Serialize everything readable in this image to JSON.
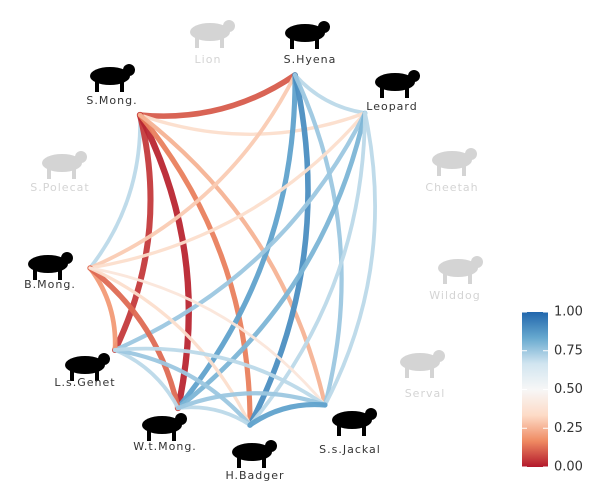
{
  "chart_data": {
    "type": "network",
    "nodes": [
      {
        "label": "Lion",
        "color": "#d4d4d4"
      },
      {
        "label": "S.Hyena",
        "color": "#000000"
      },
      {
        "label": "Leopard",
        "color": "#000000"
      },
      {
        "label": "Cheetah",
        "color": "#d4d4d4"
      },
      {
        "label": "Wilddog",
        "color": "#d4d4d4"
      },
      {
        "label": "Serval",
        "color": "#d4d4d4"
      },
      {
        "label": "S.s.Jackal",
        "color": "#000000"
      },
      {
        "label": "H.Badger",
        "color": "#000000"
      },
      {
        "label": "W.t.Mong.",
        "color": "#000000"
      },
      {
        "label": "L.s.Genet",
        "color": "#000000"
      },
      {
        "label": "B.Mong.",
        "color": "#000000"
      },
      {
        "label": "S.Polecat",
        "color": "#d4d4d4"
      },
      {
        "label": "S.Mong.",
        "color": "#000000"
      }
    ],
    "edges": [
      {
        "source": "S.Mong.",
        "target": "S.Hyena",
        "value": 0.1
      },
      {
        "source": "S.Hyena",
        "target": "Leopard",
        "value": 0.7
      },
      {
        "source": "S.Mong.",
        "target": "Leopard",
        "value": 0.35
      },
      {
        "source": "B.Mong.",
        "target": "S.Mong.",
        "value": 0.7
      },
      {
        "source": "L.s.Genet",
        "target": "S.Mong.",
        "value": 0.05
      },
      {
        "source": "W.t.Mong.",
        "target": "S.Mong.",
        "value": 0.02
      },
      {
        "source": "H.Badger",
        "target": "S.Mong.",
        "value": 0.15
      },
      {
        "source": "S.s.Jackal",
        "target": "S.Mong.",
        "value": 0.25
      },
      {
        "source": "B.Mong.",
        "target": "S.Hyena",
        "value": 0.3
      },
      {
        "source": "W.t.Mong.",
        "target": "S.Hyena",
        "value": 0.85
      },
      {
        "source": "H.Badger",
        "target": "S.Hyena",
        "value": 0.9
      },
      {
        "source": "S.s.Jackal",
        "target": "S.Hyena",
        "value": 0.75
      },
      {
        "source": "B.Mong.",
        "target": "Leopard",
        "value": 0.35
      },
      {
        "source": "L.s.Genet",
        "target": "Leopard",
        "value": 0.75
      },
      {
        "source": "W.t.Mong.",
        "target": "Leopard",
        "value": 0.8
      },
      {
        "source": "H.Badger",
        "target": "Leopard",
        "value": 0.7
      },
      {
        "source": "S.s.Jackal",
        "target": "Leopard",
        "value": 0.7
      },
      {
        "source": "L.s.Genet",
        "target": "B.Mong.",
        "value": 0.2
      },
      {
        "source": "W.t.Mong.",
        "target": "B.Mong.",
        "value": 0.12
      },
      {
        "source": "H.Badger",
        "target": "B.Mong.",
        "value": 0.35
      },
      {
        "source": "S.s.Jackal",
        "target": "B.Mong.",
        "value": 0.4
      },
      {
        "source": "W.t.Mong.",
        "target": "L.s.Genet",
        "value": 0.7
      },
      {
        "source": "H.Badger",
        "target": "L.s.Genet",
        "value": 0.75
      },
      {
        "source": "S.s.Jackal",
        "target": "L.s.Genet",
        "value": 0.7
      },
      {
        "source": "H.Badger",
        "target": "W.t.Mong.",
        "value": 0.7
      },
      {
        "source": "S.s.Jackal",
        "target": "W.t.Mong.",
        "value": 0.75
      },
      {
        "source": "S.s.Jackal",
        "target": "H.Badger",
        "value": 0.85
      }
    ],
    "colorscale": [
      "#b2182b",
      "#ef8a62",
      "#fddbc7",
      "#f7f7f7",
      "#d1e5f0",
      "#67a9cf",
      "#2166ac"
    ],
    "clim": [
      0,
      1
    ],
    "colorbar_ticks": [
      {
        "value": 0,
        "label": "0.00"
      },
      {
        "value": 0.25,
        "label": "0.25"
      },
      {
        "value": 0.5,
        "label": "0.50"
      },
      {
        "value": 0.75,
        "label": "0.75"
      },
      {
        "value": 1,
        "label": "1.00"
      }
    ]
  }
}
